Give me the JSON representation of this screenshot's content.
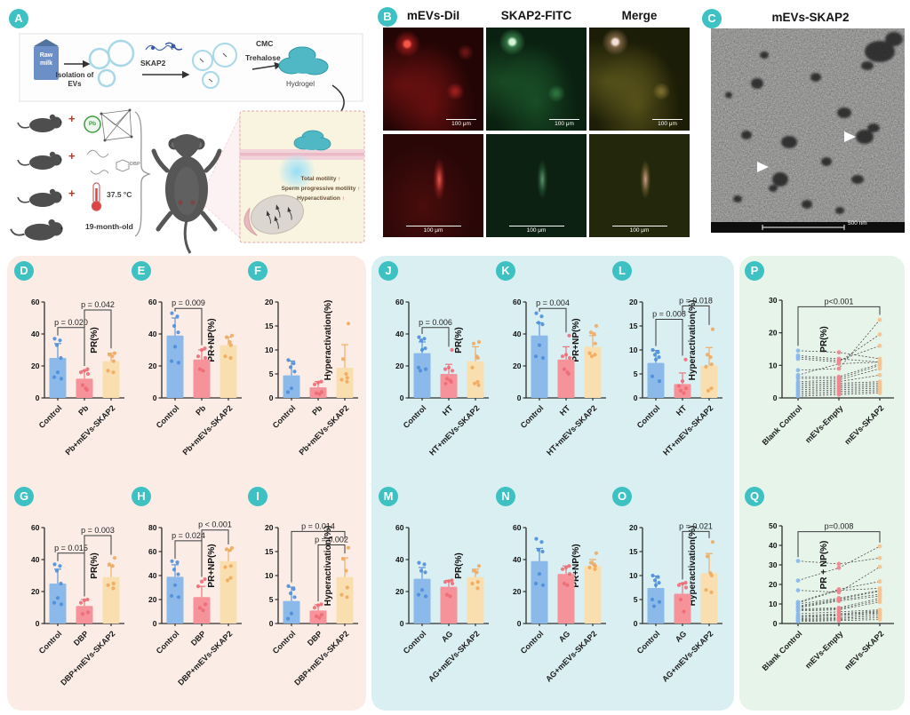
{
  "colors": {
    "badge": "#3EC1C2",
    "panel_pink_bg": "#FBEDE6",
    "panel_cyan_bg": "#D9EFF2",
    "panel_green_bg": "#E6F4EA",
    "bar_fills": [
      "#8BB9EA",
      "#F5929A",
      "#F9DFB0"
    ],
    "point_fills": [
      "#4D8ED8",
      "#EE6B76",
      "#EFA95D"
    ],
    "paired_point_fills": [
      "#8BB9EA",
      "#F0858E",
      "#F6C28D"
    ]
  },
  "panelA": {
    "badge": "A",
    "milk_line1": "Raw",
    "milk_line2": "milk",
    "isolation_line1": "Isolation of",
    "isolation_line2": "EVs",
    "skap2": "SKAP2",
    "cmc": "CMC",
    "trehalose": "Trehalose",
    "hydrogel": "Hydrogel",
    "plus": "+",
    "pb": "Pb",
    "dbp": "DBP",
    "temp": "37.5 °C",
    "age": "19-month-old",
    "inset_lines": [
      {
        "text": "Total motility",
        "arrow": "↑"
      },
      {
        "text": "Sperm progressive motility",
        "arrow": "↑"
      },
      {
        "text": "Hyperactivation",
        "arrow": "↑"
      }
    ]
  },
  "panelB": {
    "badge": "B",
    "headers": [
      "mEVs-DiI",
      "SKAP2-FITC",
      "Merge"
    ],
    "scale_label": "100 μm"
  },
  "panelC": {
    "badge": "C",
    "title": "mEVs-SKAP2",
    "scale_label": "500 nm"
  },
  "chart_data": [
    {
      "id": "D",
      "type": "bar",
      "ylabel": "PR(%)",
      "ylim": [
        0,
        60
      ],
      "yticks": [
        0,
        20,
        40,
        60
      ],
      "categories": [
        "Control",
        "Pb",
        "Pb+mEVs-SKAP2"
      ],
      "values": [
        25,
        12,
        23
      ],
      "errors": [
        9,
        5,
        5
      ],
      "points": [
        [
          37,
          36,
          33,
          25,
          16,
          13,
          12
        ],
        [
          18,
          17,
          16,
          15,
          8,
          6,
          5
        ],
        [
          28,
          27,
          26,
          23,
          17,
          16
        ]
      ],
      "brackets": [
        {
          "from": 0,
          "to": 1,
          "label": "p = 0.020",
          "at": 44,
          "drop": [
            39,
            20
          ]
        },
        {
          "from": 1,
          "to": 2,
          "label": "p = 0.042",
          "at": 55,
          "drop": [
            20,
            31
          ]
        }
      ]
    },
    {
      "id": "E",
      "type": "bar",
      "ylabel": "PR+NP(%)",
      "ylim": [
        0,
        60
      ],
      "yticks": [
        0,
        20,
        40,
        60
      ],
      "categories": [
        "Control",
        "Pb",
        "Pb+mEVs-SKAP2"
      ],
      "values": [
        39,
        24,
        33
      ],
      "errors": [
        11,
        6,
        5
      ],
      "points": [
        [
          53,
          51,
          45,
          41,
          32,
          23,
          22
        ],
        [
          31,
          30,
          26,
          25,
          18,
          17
        ],
        [
          39,
          38,
          35,
          33,
          26,
          25
        ]
      ],
      "brackets": [
        {
          "from": 0,
          "to": 1,
          "label": "p = 0.009",
          "at": 56,
          "drop": [
            54,
            33
          ]
        }
      ]
    },
    {
      "id": "F",
      "type": "bar",
      "ylabel": "Hyperactivation(%)",
      "ylim": [
        0,
        20
      ],
      "yticks": [
        0,
        5,
        10,
        15,
        20
      ],
      "categories": [
        "Control",
        "Pb",
        "Pb+mEVs-SKAP2"
      ],
      "values": [
        4.7,
        2.2,
        6.3
      ],
      "errors": [
        3,
        1.2,
        4.8
      ],
      "points": [
        [
          7.9,
          7.2,
          6.4,
          5.5,
          2,
          1.2
        ],
        [
          3.4,
          3.2,
          2.8,
          1.2,
          1,
          0.8
        ],
        [
          15.5,
          8.1,
          5,
          4.2,
          3.8,
          3.4
        ]
      ],
      "brackets": []
    },
    {
      "id": "G",
      "type": "bar",
      "ylabel": "PR(%)",
      "ylim": [
        0,
        60
      ],
      "yticks": [
        0,
        20,
        40,
        60
      ],
      "categories": [
        "Control",
        "DBP",
        "DBP+mEVs-SKAP2"
      ],
      "values": [
        25,
        11,
        29
      ],
      "errors": [
        9,
        4,
        7
      ],
      "points": [
        [
          37,
          36,
          33,
          25,
          16,
          13,
          12
        ],
        [
          15,
          14.5,
          13,
          7,
          6
        ],
        [
          41,
          37,
          36,
          25,
          24,
          22
        ]
      ],
      "brackets": [
        {
          "from": 0,
          "to": 1,
          "label": "p = 0.015",
          "at": 44,
          "drop": [
            39,
            17
          ]
        },
        {
          "from": 1,
          "to": 2,
          "label": "p = 0.003",
          "at": 55,
          "drop": [
            17,
            43
          ]
        }
      ]
    },
    {
      "id": "H",
      "type": "bar",
      "ylabel": "PR+NP(%)",
      "ylim": [
        0,
        80
      ],
      "yticks": [
        0,
        20,
        40,
        60,
        80
      ],
      "categories": [
        "Control",
        "DBP",
        "DBP+mEVs-SKAP2"
      ],
      "values": [
        39,
        22,
        52
      ],
      "errors": [
        10,
        9,
        9
      ],
      "points": [
        [
          52,
          51,
          45,
          41,
          32,
          23,
          22
        ],
        [
          37,
          35,
          31,
          16,
          13,
          11
        ],
        [
          63,
          62,
          61,
          48,
          47,
          38,
          36
        ]
      ],
      "brackets": [
        {
          "from": 0,
          "to": 1,
          "label": "p = 0.024",
          "at": 69,
          "drop": [
            54,
            39
          ]
        },
        {
          "from": 1,
          "to": 2,
          "label": "p < 0.001",
          "at": 78,
          "drop": [
            39,
            66
          ]
        }
      ]
    },
    {
      "id": "I",
      "type": "bar",
      "ylabel": "Hyperactivation(%)",
      "ylim": [
        0,
        20
      ],
      "yticks": [
        0,
        5,
        10,
        15,
        20
      ],
      "categories": [
        "Control",
        "DBP",
        "DBP+mEVs-SKAP2"
      ],
      "values": [
        4.7,
        2.7,
        9.7
      ],
      "errors": [
        2.9,
        1.2,
        4
      ],
      "points": [
        [
          7.8,
          7.2,
          6.3,
          5.5,
          2.1,
          1
        ],
        [
          4,
          3.8,
          3.3,
          1.8,
          1.5,
          1.2
        ],
        [
          15.8,
          13.5,
          11,
          7.5,
          6,
          5.5
        ]
      ],
      "brackets": [
        {
          "from": 0,
          "to": 2,
          "label": "p = 0.014",
          "at": 19.2,
          "drop": [
            8.6,
            17.6
          ]
        },
        {
          "from": 1,
          "to": 2,
          "label": "p = 0.002",
          "at": 16.4,
          "drop": [
            4.6,
            14.6
          ]
        }
      ]
    },
    {
      "id": "J",
      "type": "bar",
      "ylabel": "PR(%)",
      "ylim": [
        0,
        60
      ],
      "yticks": [
        0,
        20,
        40,
        60
      ],
      "categories": [
        "Control",
        "HT",
        "HT+mEVs-SKAP2"
      ],
      "values": [
        28,
        15,
        23
      ],
      "errors": [
        7,
        6,
        9
      ],
      "points": [
        [
          38,
          37,
          36,
          31,
          30,
          19,
          18,
          17
        ],
        [
          30,
          19,
          18,
          17,
          12,
          11,
          10,
          9
        ],
        [
          35,
          34,
          26,
          25,
          19,
          10,
          9,
          8
        ]
      ],
      "brackets": [
        {
          "from": 0,
          "to": 1,
          "label": "p = 0.006",
          "at": 44,
          "drop": [
            40,
            32
          ]
        }
      ]
    },
    {
      "id": "K",
      "type": "bar",
      "ylabel": "PR+NP(%)",
      "ylim": [
        0,
        60
      ],
      "yticks": [
        0,
        20,
        40,
        60
      ],
      "categories": [
        "Control",
        "HT",
        "HT+mEVs-SKAP2"
      ],
      "values": [
        39,
        24,
        32
      ],
      "errors": [
        8,
        8,
        7
      ],
      "points": [
        [
          53,
          51,
          47,
          46,
          33,
          26,
          25
        ],
        [
          39,
          27,
          26,
          25,
          18,
          16,
          15
        ],
        [
          45,
          41,
          40,
          34,
          28,
          27,
          26
        ]
      ],
      "brackets": [
        {
          "from": 0,
          "to": 1,
          "label": "p = 0.004",
          "at": 56,
          "drop": [
            54,
            41
          ]
        }
      ]
    },
    {
      "id": "L",
      "type": "bar",
      "ylabel": "Hyperactivation(%)",
      "ylim": [
        0,
        20
      ],
      "yticks": [
        0,
        5,
        10,
        15,
        20
      ],
      "categories": [
        "Control",
        "HT",
        "HT+mEVs-SKAP2"
      ],
      "values": [
        7.3,
        2.9,
        6.7
      ],
      "errors": [
        2.6,
        2.3,
        3.8
      ],
      "points": [
        [
          10,
          9.5,
          9,
          8.5,
          8,
          4.5,
          3.5
        ],
        [
          8,
          3.5,
          2.5,
          2,
          1.5,
          1
        ],
        [
          14.3,
          9,
          8.5,
          7,
          6.5,
          2,
          1.5
        ]
      ],
      "brackets": [
        {
          "from": 0,
          "to": 1,
          "label": "p = 0.008",
          "at": 16.4,
          "drop": [
            10.8,
            8.8
          ]
        },
        {
          "from": 1,
          "to": 2,
          "label": "p = 0.018",
          "at": 19.2,
          "drop": [
            17.4,
            15.2
          ]
        }
      ]
    },
    {
      "id": "M",
      "type": "bar",
      "ylabel": "PR(%)",
      "ylim": [
        0,
        60
      ],
      "yticks": [
        0,
        20,
        40,
        60
      ],
      "categories": [
        "Control",
        "AG",
        "AG+mEVs-SKAP2"
      ],
      "values": [
        28,
        23,
        29
      ],
      "errors": [
        7,
        4,
        5
      ],
      "points": [
        [
          38,
          37,
          33,
          32,
          21,
          18,
          17
        ],
        [
          27,
          26.5,
          26,
          25,
          18,
          17
        ],
        [
          36,
          33,
          32,
          26,
          25,
          22
        ]
      ],
      "brackets": []
    },
    {
      "id": "N",
      "type": "bar",
      "ylabel": "PR+NP(%)",
      "ylim": [
        0,
        60
      ],
      "yticks": [
        0,
        20,
        40,
        60
      ],
      "categories": [
        "Control",
        "AG",
        "AG+mEVs-SKAP2"
      ],
      "values": [
        39,
        31,
        36
      ],
      "errors": [
        8,
        5,
        4
      ],
      "points": [
        [
          53,
          51,
          46,
          45,
          31,
          25,
          24
        ],
        [
          36,
          35,
          34,
          31,
          25,
          24
        ],
        [
          44,
          38,
          37,
          36,
          35,
          34
        ]
      ],
      "brackets": []
    },
    {
      "id": "O",
      "type": "bar",
      "ylabel": "Hyperactivation(%)",
      "ylim": [
        0,
        20
      ],
      "yticks": [
        0,
        5,
        10,
        15,
        20
      ],
      "categories": [
        "Control",
        "AG",
        "AG+mEVs-SKAP2"
      ],
      "values": [
        7.4,
        6.2,
        10.5
      ],
      "errors": [
        2.5,
        2.2,
        4.1
      ],
      "points": [
        [
          10,
          9.7,
          9,
          8.5,
          8,
          5,
          4.5,
          3.6
        ],
        [
          8.5,
          8.3,
          8,
          7.5,
          5,
          2.5
        ],
        [
          17,
          14,
          10.5,
          10,
          7,
          6.5
        ]
      ],
      "brackets": [
        {
          "from": 1,
          "to": 2,
          "label": "p = 0.021",
          "at": 19.2,
          "drop": [
            9.2,
            17.8
          ]
        }
      ]
    },
    {
      "id": "P",
      "type": "paired",
      "ylabel": "PR(%)",
      "ylim": [
        0,
        30
      ],
      "yticks": [
        0,
        10,
        20,
        30
      ],
      "categories": [
        "Blank Control",
        "mEVs-Empty",
        "mEVs-SKAP2"
      ],
      "pairs": [
        [
          14.5,
          14,
          12
        ],
        [
          13,
          12,
          11
        ],
        [
          12.5,
          11.5,
          16
        ],
        [
          12,
          11,
          19.5
        ],
        [
          8.5,
          9,
          24
        ],
        [
          7,
          10.5,
          11
        ],
        [
          6.5,
          6.5,
          10.5
        ],
        [
          6,
          6,
          10
        ],
        [
          5,
          5.5,
          9
        ],
        [
          4.5,
          5,
          7
        ],
        [
          4,
          4.5,
          5
        ],
        [
          3.5,
          4,
          4.5
        ],
        [
          3,
          3.5,
          4
        ],
        [
          2.5,
          3,
          3.5
        ],
        [
          2,
          2.5,
          3
        ],
        [
          1.5,
          2,
          2.5
        ],
        [
          1,
          1.5,
          2
        ],
        [
          0.5,
          1,
          1.5
        ]
      ],
      "brackets": [
        {
          "from": 0,
          "to": 2,
          "label": "p<0.001",
          "at": 28,
          "drop": [
            16,
            25.5
          ]
        }
      ]
    },
    {
      "id": "Q",
      "type": "paired",
      "ylabel": "PR + NP(%)",
      "ylim": [
        0,
        50
      ],
      "yticks": [
        0,
        10,
        20,
        30,
        40,
        50
      ],
      "categories": [
        "Blank Control",
        "mEVs-Empty",
        "mEVs-SKAP2"
      ],
      "pairs": [
        [
          32,
          30.5,
          33.5
        ],
        [
          22,
          28.5,
          39.5
        ],
        [
          17,
          16,
          29
        ],
        [
          11,
          17.5,
          21.5
        ],
        [
          10.5,
          17,
          18
        ],
        [
          10,
          13,
          17
        ],
        [
          9,
          12.5,
          16.5
        ],
        [
          8.5,
          12,
          15
        ],
        [
          8,
          11.5,
          14
        ],
        [
          7.5,
          8,
          13
        ],
        [
          7,
          7.5,
          12
        ],
        [
          6.5,
          7,
          11
        ],
        [
          5,
          6,
          7
        ],
        [
          4,
          5,
          6.5
        ],
        [
          3.5,
          4.5,
          6
        ],
        [
          3,
          4,
          5.5
        ],
        [
          2.5,
          3,
          5
        ],
        [
          2,
          2.5,
          4
        ],
        [
          1.5,
          2,
          3
        ],
        [
          1,
          1.5,
          2
        ]
      ],
      "brackets": [
        {
          "from": 0,
          "to": 2,
          "label": "p=0.008",
          "at": 47,
          "drop": [
            34,
            41.5
          ]
        }
      ]
    }
  ]
}
